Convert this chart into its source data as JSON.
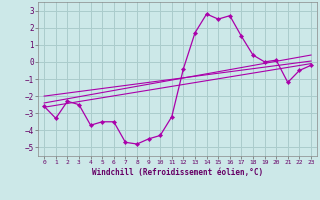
{
  "xlabel": "Windchill (Refroidissement éolien,°C)",
  "background_color": "#cce8e8",
  "grid_color": "#aacccc",
  "line_color": "#aa00aa",
  "xlim": [
    -0.5,
    23.5
  ],
  "ylim": [
    -5.5,
    3.5
  ],
  "yticks": [
    -5,
    -4,
    -3,
    -2,
    -1,
    0,
    1,
    2,
    3
  ],
  "xticks": [
    0,
    1,
    2,
    3,
    4,
    5,
    6,
    7,
    8,
    9,
    10,
    11,
    12,
    13,
    14,
    15,
    16,
    17,
    18,
    19,
    20,
    21,
    22,
    23
  ],
  "curve_x": [
    0,
    1,
    2,
    3,
    4,
    5,
    6,
    7,
    8,
    9,
    10,
    11,
    12,
    13,
    14,
    15,
    16,
    17,
    18,
    19,
    20,
    21,
    22,
    23
  ],
  "curve_y": [
    -2.6,
    -3.3,
    -2.3,
    -2.5,
    -3.7,
    -3.5,
    -3.5,
    -4.7,
    -4.8,
    -4.5,
    -4.3,
    -3.2,
    -0.4,
    1.7,
    2.8,
    2.5,
    2.7,
    1.5,
    0.4,
    0.0,
    0.1,
    -1.2,
    -0.5,
    -0.2
  ],
  "line1_x": [
    0,
    23
  ],
  "line1_y": [
    -2.4,
    0.4
  ],
  "line2_x": [
    0,
    23
  ],
  "line2_y": [
    -2.0,
    0.05
  ],
  "line3_x": [
    0,
    23
  ],
  "line3_y": [
    -2.65,
    -0.1
  ]
}
